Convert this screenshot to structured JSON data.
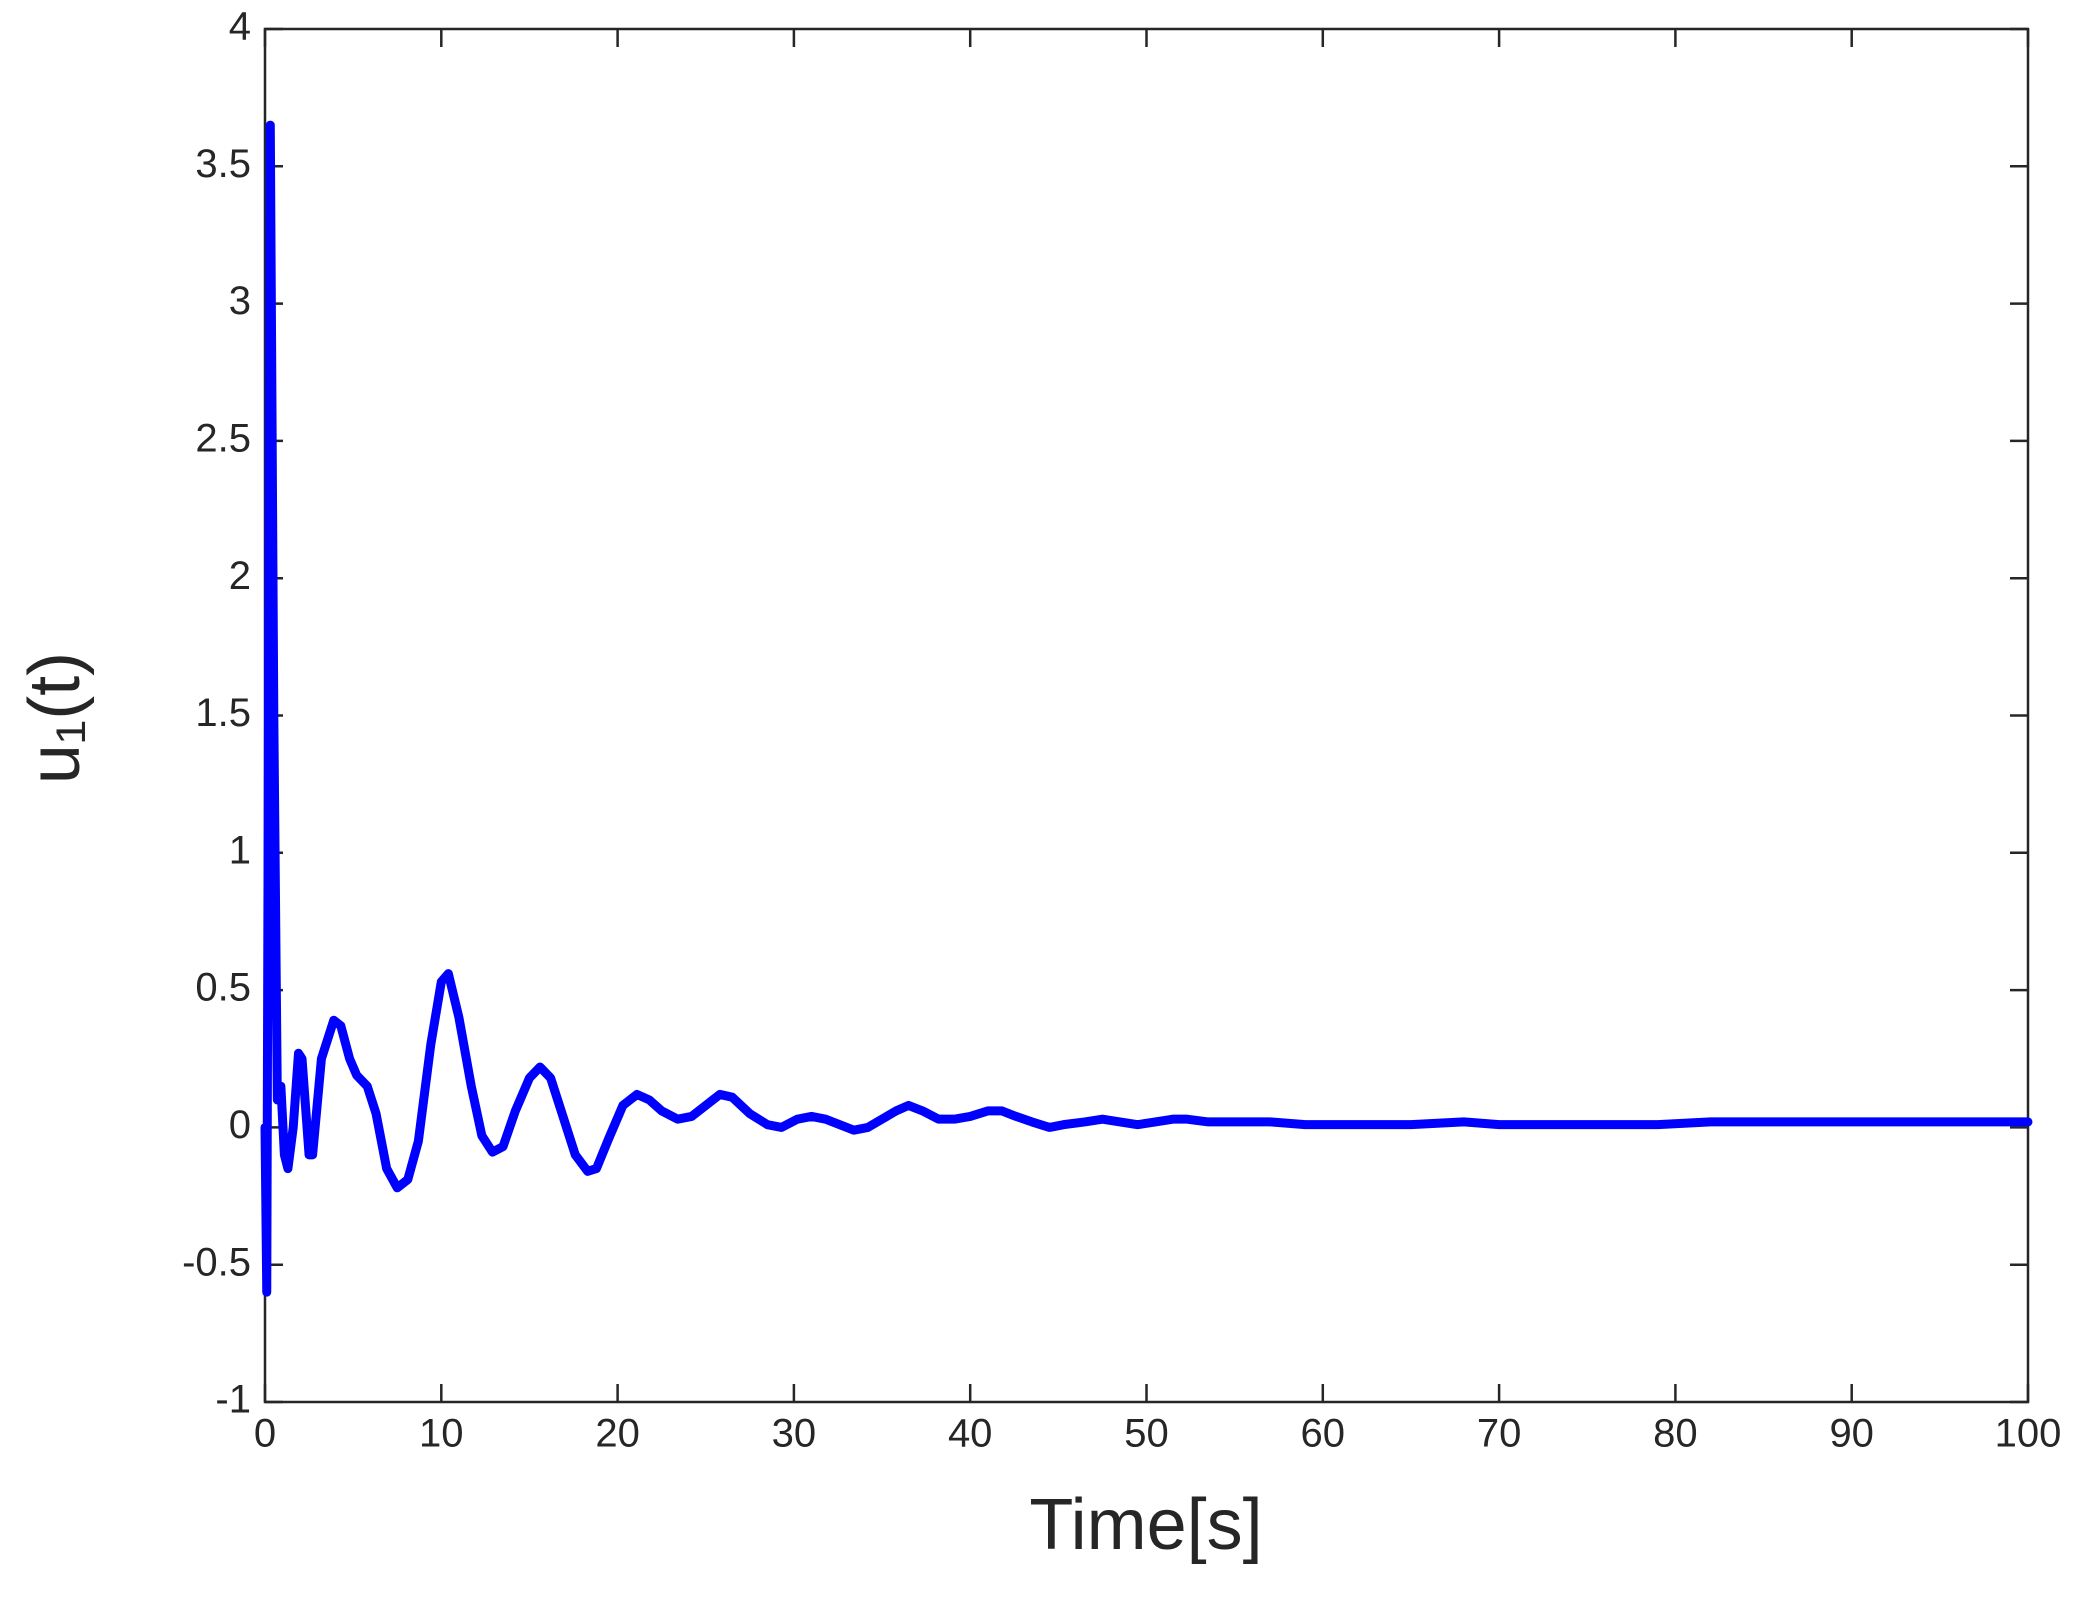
{
  "chart_data": {
    "type": "line",
    "xlabel": "Time[s]",
    "ylabel": "u₁(t)",
    "xlim": [
      0,
      100
    ],
    "xticks": [
      0,
      10,
      20,
      30,
      40,
      50,
      60,
      70,
      80,
      90,
      100
    ],
    "ylim": [
      -1,
      4
    ],
    "yticks": [
      -1,
      -0.5,
      0,
      0.5,
      1,
      1.5,
      2,
      2.5,
      3,
      3.5,
      4
    ],
    "grid": false,
    "series": [
      {
        "name": "u1",
        "color": "#0000ff",
        "x": [
          0,
          0.1,
          0.3,
          0.5,
          0.7,
          0.9,
          1.1,
          1.3,
          1.6,
          1.9,
          2.1,
          2.5,
          2.7,
          3.2,
          3.9,
          4.3,
          4.8,
          5.2,
          5.8,
          6.3,
          6.9,
          7.5,
          8.1,
          8.7,
          9.4,
          10,
          10.4,
          11,
          11.7,
          12.3,
          12.9,
          13.5,
          14.2,
          15,
          15.6,
          16.2,
          16.9,
          17.6,
          18.3,
          18.8,
          19.5,
          20.3,
          21.1,
          21.8,
          22.5,
          23.4,
          24.2,
          25,
          25.8,
          26.5,
          27.5,
          28.5,
          29.3,
          30.2,
          31,
          31.8,
          32.6,
          33.4,
          34.2,
          35,
          35.8,
          36.5,
          37.3,
          38.2,
          39.1,
          40,
          41,
          41.8,
          42.6,
          43.5,
          44.5,
          45.3,
          46.5,
          47.5,
          48.5,
          49.5,
          50.5,
          51.5,
          52.3,
          53.5,
          55,
          57,
          59,
          60.5,
          63,
          65,
          68,
          70,
          73,
          76,
          79,
          82,
          85,
          88,
          91,
          94,
          97,
          100
        ],
        "values": [
          0,
          -0.6,
          3.65,
          1.5,
          0.1,
          0.15,
          -0.1,
          -0.15,
          0.0,
          0.27,
          0.25,
          -0.1,
          -0.1,
          0.25,
          0.39,
          0.37,
          0.25,
          0.19,
          0.15,
          0.05,
          -0.15,
          -0.22,
          -0.19,
          -0.05,
          0.3,
          0.53,
          0.56,
          0.4,
          0.15,
          -0.03,
          -0.09,
          -0.07,
          0.06,
          0.18,
          0.22,
          0.18,
          0.04,
          -0.1,
          -0.16,
          -0.15,
          -0.04,
          0.08,
          0.12,
          0.1,
          0.06,
          0.03,
          0.04,
          0.08,
          0.12,
          0.11,
          0.05,
          0.01,
          0.0,
          0.03,
          0.04,
          0.03,
          0.01,
          -0.01,
          0.0,
          0.03,
          0.06,
          0.08,
          0.06,
          0.03,
          0.03,
          0.04,
          0.06,
          0.06,
          0.04,
          0.02,
          0.0,
          0.01,
          0.02,
          0.03,
          0.02,
          0.01,
          0.02,
          0.03,
          0.03,
          0.02,
          0.02,
          0.02,
          0.01,
          0.01,
          0.01,
          0.01,
          0.02,
          0.01,
          0.01,
          0.01,
          0.01,
          0.02,
          0.02,
          0.02,
          0.02,
          0.02,
          0.02,
          0.02
        ]
      }
    ]
  }
}
